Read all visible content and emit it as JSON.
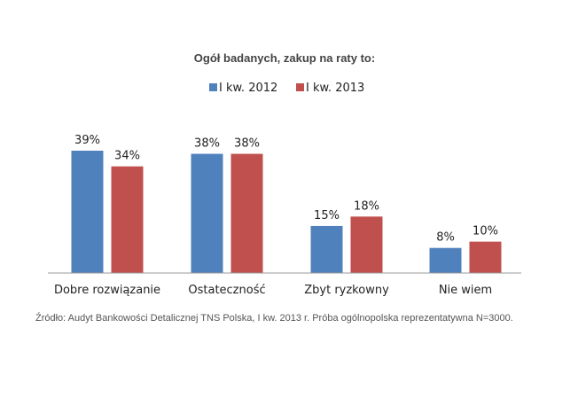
{
  "chart_data": {
    "type": "bar",
    "title": "Ogół badanych, zakup na raty to:",
    "categories": [
      "Dobre rozwiązanie",
      "Ostateczność",
      "Zbyt ryzkowny",
      "Nie wiem"
    ],
    "series": [
      {
        "name": "I kw. 2012",
        "color": "#4F81BD",
        "values": [
          39,
          38,
          15,
          8
        ],
        "labels": [
          "39%",
          "38%",
          "15%",
          "8%"
        ]
      },
      {
        "name": "I kw. 2013",
        "color": "#C0504D",
        "values": [
          34,
          38,
          18,
          10
        ],
        "labels": [
          "34%",
          "38%",
          "18%",
          "10%"
        ]
      }
    ],
    "ylim": [
      0,
      39
    ],
    "grid": false,
    "legend_position": "top-center",
    "xlabel": "",
    "ylabel": ""
  },
  "source_note": "Źródło: Audyt Bankowości Detalicznej TNS Polska, I kw. 2013 r. Próba ogólnopolska reprezentatywna N=3000."
}
